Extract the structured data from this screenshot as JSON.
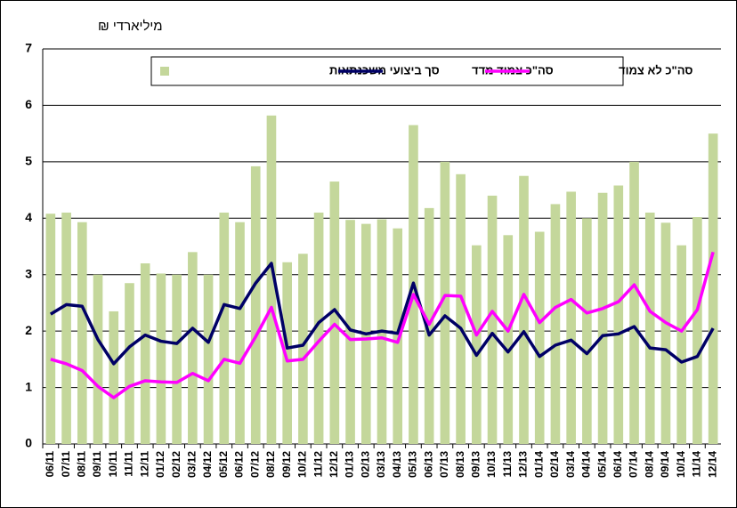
{
  "chart_data": {
    "type": "bar-line",
    "y_label": "מיליארדי ₪",
    "categories": [
      "06/11",
      "07/11",
      "08/11",
      "09/11",
      "10/11",
      "11/11",
      "12/11",
      "01/12",
      "02/12",
      "03/12",
      "04/12",
      "05/12",
      "06/12",
      "07/12",
      "08/12",
      "09/12",
      "10/12",
      "11/12",
      "12/12",
      "01/13",
      "02/13",
      "03/13",
      "04/13",
      "05/13",
      "06/13",
      "07/13",
      "08/13",
      "09/13",
      "10/13",
      "11/13",
      "12/13",
      "01/14",
      "02/14",
      "03/14",
      "04/14",
      "05/14",
      "06/14",
      "07/14",
      "08/14",
      "09/14",
      "10/14",
      "11/14",
      "12/14"
    ],
    "series": [
      {
        "name": "סך ביצועי משכנתאות",
        "kind": "bar",
        "color": "#c4d79b",
        "values": [
          4.08,
          4.1,
          3.93,
          3.0,
          2.35,
          2.85,
          3.2,
          3.02,
          3.0,
          3.4,
          3.0,
          4.1,
          3.93,
          4.92,
          5.82,
          3.22,
          3.37,
          4.1,
          4.65,
          3.97,
          3.9,
          3.98,
          3.82,
          5.65,
          4.18,
          5.0,
          4.78,
          3.52,
          4.4,
          3.7,
          4.75,
          3.76,
          4.25,
          4.47,
          4.0,
          4.45,
          4.58,
          5.0,
          4.1,
          3.92,
          3.52,
          4.02,
          5.5
        ]
      },
      {
        "name": "סה\"כ צמוד מדד",
        "kind": "line",
        "color": "#000066",
        "values": [
          2.3,
          2.47,
          2.44,
          1.85,
          1.42,
          1.72,
          1.93,
          1.82,
          1.78,
          2.05,
          1.8,
          2.47,
          2.4,
          2.85,
          3.2,
          1.7,
          1.75,
          2.15,
          2.38,
          2.02,
          1.95,
          2.0,
          1.96,
          2.85,
          1.93,
          2.27,
          2.05,
          1.57,
          1.96,
          1.63,
          1.99,
          1.55,
          1.75,
          1.84,
          1.6,
          1.92,
          1.95,
          2.08,
          1.7,
          1.67,
          1.45,
          1.55,
          2.05
        ]
      },
      {
        "name": "סה\"כ לא צמוד",
        "kind": "line",
        "color": "#ff00ff",
        "values": [
          1.5,
          1.42,
          1.3,
          1.02,
          0.82,
          1.02,
          1.12,
          1.1,
          1.09,
          1.25,
          1.12,
          1.5,
          1.43,
          1.9,
          2.42,
          1.47,
          1.5,
          1.82,
          2.12,
          1.85,
          1.86,
          1.88,
          1.8,
          2.65,
          2.12,
          2.63,
          2.62,
          1.93,
          2.35,
          2.0,
          2.65,
          2.15,
          2.42,
          2.56,
          2.32,
          2.4,
          2.52,
          2.82,
          2.35,
          2.15,
          2.0,
          2.38,
          3.4
        ]
      }
    ],
    "ylim": [
      0,
      7
    ],
    "yticks": [
      0,
      1,
      2,
      3,
      4,
      5,
      6,
      7
    ],
    "grid": true
  }
}
